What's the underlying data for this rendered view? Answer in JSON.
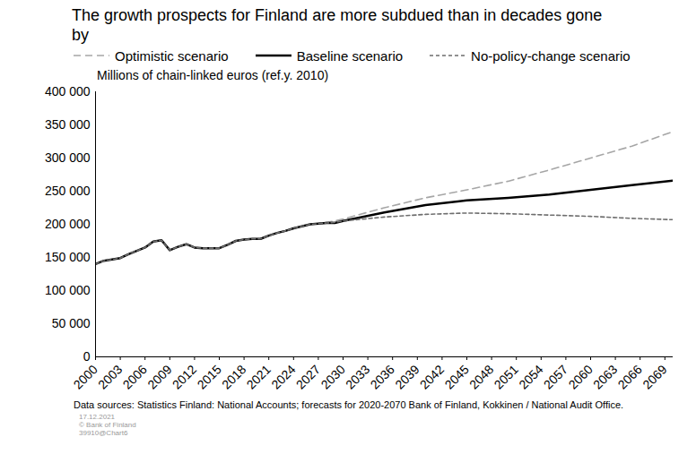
{
  "chart_data": {
    "type": "line",
    "title": "The growth prospects for Finland are more subdued than in decades gone by",
    "subtitle": "Millions of chain-linked euros (ref.y. 2010)",
    "caption": "Data sources: Statistics Finland: National Accounts; forecasts for 2020-2070 Bank of Finland, Kokkinen / National Audit Office.",
    "notes": [
      "17.12.2021",
      "© Bank of Finland",
      "39910@Chart6"
    ],
    "x": [
      2000,
      2001,
      2002,
      2003,
      2004,
      2005,
      2006,
      2007,
      2008,
      2009,
      2010,
      2011,
      2012,
      2013,
      2014,
      2015,
      2016,
      2017,
      2018,
      2019,
      2020,
      2021,
      2022,
      2023,
      2024,
      2025,
      2026,
      2027,
      2028,
      2029,
      2030,
      2035,
      2040,
      2045,
      2050,
      2055,
      2060,
      2065,
      2070
    ],
    "series": [
      {
        "name": "Optimistic scenario",
        "color": "#a6a6a6",
        "line_style": "long_dash",
        "values": [
          140000,
          145000,
          147000,
          149000,
          155000,
          160000,
          165000,
          174000,
          176000,
          161000,
          166000,
          170000,
          165000,
          164000,
          164000,
          164000,
          169000,
          175000,
          177000,
          178000,
          178000,
          183000,
          187000,
          190000,
          194000,
          197000,
          200000,
          201000,
          203000,
          205000,
          208000,
          225000,
          240000,
          252000,
          265000,
          282000,
          300000,
          318000,
          340000
        ]
      },
      {
        "name": "Baseline scenario",
        "color": "#000000",
        "line_style": "solid",
        "values": [
          140000,
          145000,
          147000,
          149000,
          155000,
          160000,
          165000,
          174000,
          176000,
          161000,
          166000,
          170000,
          165000,
          164000,
          164000,
          164000,
          169000,
          175000,
          177000,
          178000,
          178000,
          183000,
          187000,
          190000,
          194000,
          197000,
          200000,
          201000,
          202000,
          202000,
          205000,
          218000,
          229000,
          236000,
          240000,
          245000,
          252000,
          259000,
          266000
        ]
      },
      {
        "name": "No-policy-change scenario",
        "color": "#6e6e6e",
        "line_style": "short_dash",
        "values": [
          140000,
          145000,
          147000,
          149000,
          155000,
          160000,
          165000,
          174000,
          176000,
          161000,
          166000,
          170000,
          165000,
          164000,
          164000,
          164000,
          169000,
          175000,
          177000,
          178000,
          178000,
          183000,
          187000,
          190000,
          194000,
          197000,
          200000,
          201000,
          202000,
          203000,
          205000,
          211000,
          215000,
          217000,
          216000,
          214000,
          212000,
          209000,
          207000
        ]
      }
    ],
    "xlim": [
      2000,
      2070
    ],
    "xticks": [
      2000,
      2003,
      2006,
      2009,
      2012,
      2015,
      2018,
      2021,
      2024,
      2027,
      2030,
      2033,
      2036,
      2039,
      2042,
      2045,
      2048,
      2051,
      2054,
      2057,
      2060,
      2063,
      2066,
      2069
    ],
    "ylim": [
      0,
      400000
    ],
    "yticks": [
      0,
      {
        "value": 50000,
        "label": "50 000"
      },
      {
        "value": 100000,
        "label": "100 000"
      },
      {
        "value": 150000,
        "label": "150 000"
      },
      {
        "value": 200000,
        "label": "200 000"
      },
      {
        "value": 250000,
        "label": "250 000"
      },
      {
        "value": 300000,
        "label": "300 000"
      },
      {
        "value": 350000,
        "label": "350 000"
      },
      {
        "value": 400000,
        "label": "400 000"
      }
    ],
    "grid": false,
    "legend": "top"
  }
}
